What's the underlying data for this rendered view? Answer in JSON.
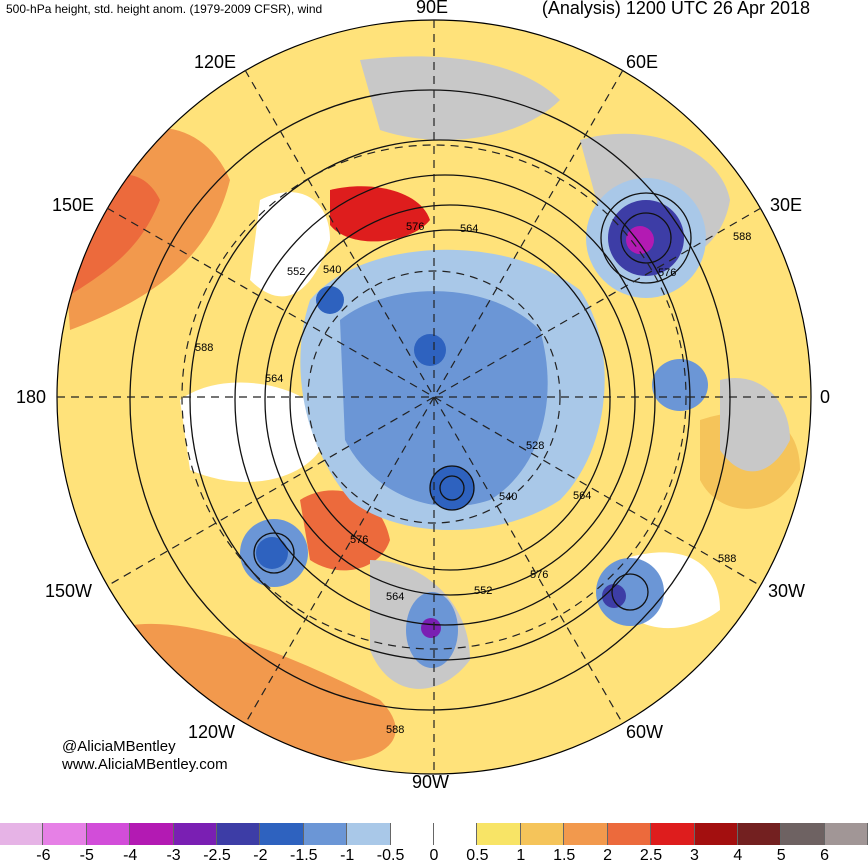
{
  "header": {
    "left": "500-hPa height, std. height anom. (1979-2009 CFSR), wind",
    "right": "(Analysis) 1200 UTC 26 Apr 2018"
  },
  "longitudes": {
    "90E": "90E",
    "120E": "120E",
    "60E": "60E",
    "150E": "150E",
    "30E": "30E",
    "180": "180",
    "0": "0",
    "150W": "150W",
    "30W": "30W",
    "120W": "120W",
    "60W": "60W",
    "90W": "90W"
  },
  "contour_labels": [
    "576",
    "564",
    "552",
    "540",
    "588",
    "564",
    "528",
    "540",
    "564",
    "576",
    "576",
    "564",
    "552",
    "576",
    "588",
    "588",
    "588"
  ],
  "credits": {
    "handle": "@AliciaMBentley",
    "site": "www.AliciaMBentley.com"
  },
  "colorbar": {
    "colors": [
      "#e6b3e6",
      "#e680e6",
      "#d24dd9",
      "#b31ab3",
      "#7a1fb3",
      "#3d3da6",
      "#2e62bf",
      "#6b96d6",
      "#a9c8e8",
      "#ffffff",
      "#ffffff",
      "#f8e466",
      "#f5c45a",
      "#f2994d",
      "#ec6a3c",
      "#de1d1d",
      "#a30f0f",
      "#732020",
      "#6e6262",
      "#a19696"
    ],
    "labels": [
      "-6",
      "-5",
      "-4",
      "-3",
      "-2.5",
      "-2",
      "-1.5",
      "-1",
      "-0.5",
      "0",
      "0.5",
      "1",
      "1.5",
      "2",
      "2.5",
      "3",
      "4",
      "5",
      "6"
    ]
  },
  "colors": {
    "neutral_fill": "#ffe27a",
    "warm": "#f2994d",
    "hot": "#de1d1d",
    "cold": "#6b96d6",
    "land_gray": "#c8c8c8"
  }
}
